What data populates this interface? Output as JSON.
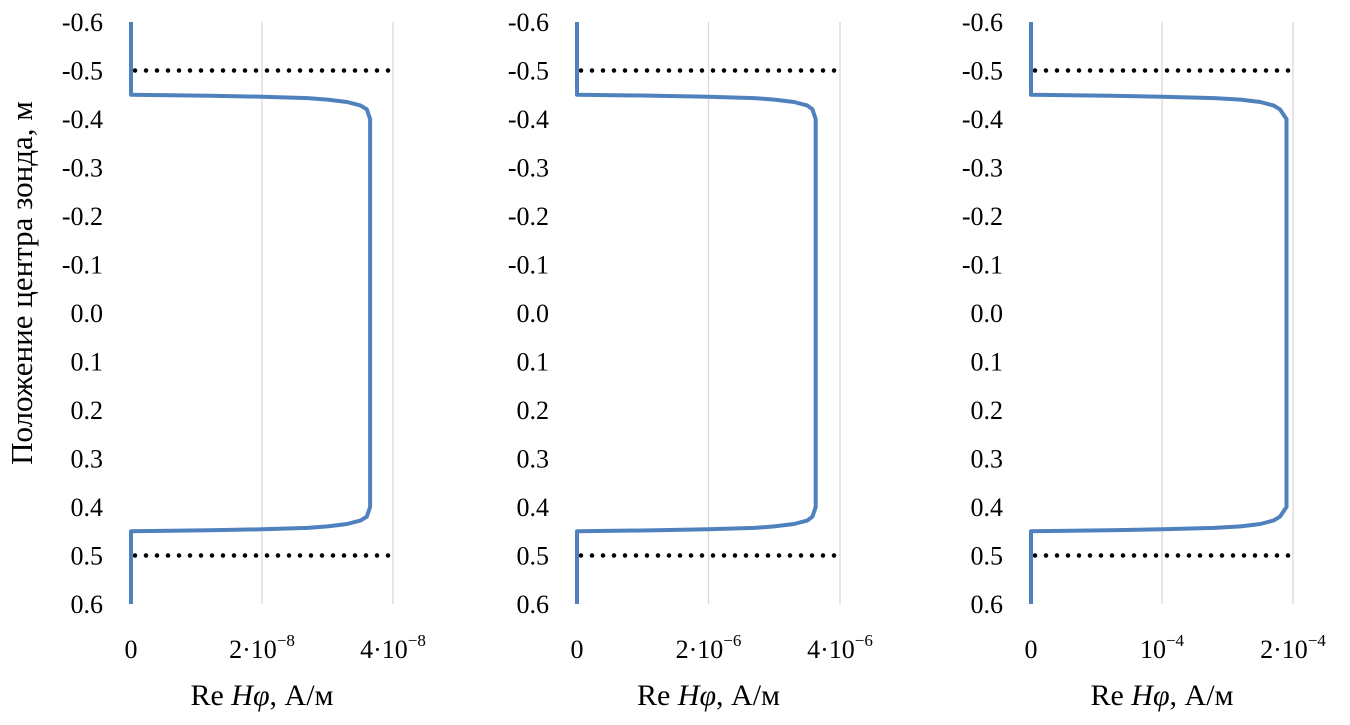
{
  "ylabel": "Положение центра зонда, м",
  "colors": {
    "curve": "#4f81bd",
    "grid": "#d9d9d9",
    "marker": "#000000"
  },
  "chart_data": [
    {
      "type": "line",
      "xlabel_prefix": "Re ",
      "xlabel_var": "Hφ",
      "xlabel_suffix": ", А/м",
      "xlim": [
        0,
        4e-08
      ],
      "ylim": [
        -0.6,
        0.6
      ],
      "y_reversed": true,
      "x_ticks": [
        {
          "value": 0,
          "label": "0"
        },
        {
          "value": 2e-08,
          "base": "2·10",
          "exp": "−8"
        },
        {
          "value": 4e-08,
          "base": "4·10",
          "exp": "−8"
        }
      ],
      "y_ticks": [
        "-0.6",
        "-0.5",
        "-0.4",
        "-0.3",
        "-0.2",
        "-0.1",
        "0.0",
        "0.1",
        "0.2",
        "0.3",
        "0.4",
        "0.5",
        "0.6"
      ],
      "reference_lines": [
        -0.5,
        0.5
      ],
      "series": [
        {
          "points": [
            [
              0,
              -0.6
            ],
            [
              0,
              -0.45
            ],
            [
              1.2e-08,
              -0.448
            ],
            [
              2e-08,
              -0.446
            ],
            [
              2.7e-08,
              -0.443
            ],
            [
              3e-08,
              -0.44
            ],
            [
              3.3e-08,
              -0.435
            ],
            [
              3.5e-08,
              -0.428
            ],
            [
              3.6e-08,
              -0.42
            ],
            [
              3.65e-08,
              -0.4
            ],
            [
              3.65e-08,
              0.4
            ],
            [
              3.6e-08,
              0.42
            ],
            [
              3.5e-08,
              0.428
            ],
            [
              3.3e-08,
              0.435
            ],
            [
              3e-08,
              0.44
            ],
            [
              2.7e-08,
              0.443
            ],
            [
              2e-08,
              0.446
            ],
            [
              1.2e-08,
              0.448
            ],
            [
              0,
              0.45
            ],
            [
              0,
              0.6
            ]
          ]
        }
      ]
    },
    {
      "type": "line",
      "xlabel_prefix": "Re ",
      "xlabel_var": "Hφ",
      "xlabel_suffix": ", А/м",
      "xlim": [
        0,
        4e-06
      ],
      "ylim": [
        -0.6,
        0.6
      ],
      "y_reversed": true,
      "x_ticks": [
        {
          "value": 0,
          "label": "0"
        },
        {
          "value": 2e-06,
          "base": "2·10",
          "exp": "−6"
        },
        {
          "value": 4e-06,
          "base": "4·10",
          "exp": "−6"
        }
      ],
      "y_ticks": [
        "-0.6",
        "-0.5",
        "-0.4",
        "-0.3",
        "-0.2",
        "-0.1",
        "0.0",
        "0.1",
        "0.2",
        "0.3",
        "0.4",
        "0.5",
        "0.6"
      ],
      "reference_lines": [
        -0.5,
        0.5
      ],
      "series": [
        {
          "points": [
            [
              0,
              -0.6
            ],
            [
              0,
              -0.45
            ],
            [
              1.2e-06,
              -0.448
            ],
            [
              2e-06,
              -0.446
            ],
            [
              2.7e-06,
              -0.443
            ],
            [
              3e-06,
              -0.44
            ],
            [
              3.3e-06,
              -0.435
            ],
            [
              3.5e-06,
              -0.428
            ],
            [
              3.58e-06,
              -0.42
            ],
            [
              3.63e-06,
              -0.4
            ],
            [
              3.63e-06,
              0.4
            ],
            [
              3.58e-06,
              0.42
            ],
            [
              3.5e-06,
              0.428
            ],
            [
              3.3e-06,
              0.435
            ],
            [
              3e-06,
              0.44
            ],
            [
              2.7e-06,
              0.443
            ],
            [
              2e-06,
              0.446
            ],
            [
              1.2e-06,
              0.448
            ],
            [
              0,
              0.45
            ],
            [
              0,
              0.6
            ]
          ]
        }
      ]
    },
    {
      "type": "line",
      "xlabel_prefix": "Re ",
      "xlabel_var": "Hφ",
      "xlabel_suffix": ", А/м",
      "xlim": [
        0,
        0.0002
      ],
      "ylim": [
        -0.6,
        0.6
      ],
      "y_reversed": true,
      "x_ticks": [
        {
          "value": 0,
          "label": "0"
        },
        {
          "value": 0.0001,
          "base": "10",
          "exp": "−4"
        },
        {
          "value": 0.0002,
          "base": "2·10",
          "exp": "−4"
        }
      ],
      "y_ticks": [
        "-0.6",
        "-0.5",
        "-0.4",
        "-0.3",
        "-0.2",
        "-0.1",
        "0.0",
        "0.1",
        "0.2",
        "0.3",
        "0.4",
        "0.5",
        "0.6"
      ],
      "reference_lines": [
        -0.5,
        0.5
      ],
      "series": [
        {
          "points": [
            [
              0,
              -0.6
            ],
            [
              0,
              -0.45
            ],
            [
              6e-05,
              -0.448
            ],
            [
              0.0001,
              -0.446
            ],
            [
              0.00014,
              -0.443
            ],
            [
              0.00016,
              -0.44
            ],
            [
              0.000175,
              -0.435
            ],
            [
              0.000185,
              -0.428
            ],
            [
              0.00019,
              -0.42
            ],
            [
              0.000195,
              -0.4
            ],
            [
              0.000195,
              0.4
            ],
            [
              0.00019,
              0.42
            ],
            [
              0.000185,
              0.428
            ],
            [
              0.000175,
              0.435
            ],
            [
              0.00016,
              0.44
            ],
            [
              0.00014,
              0.443
            ],
            [
              0.0001,
              0.446
            ],
            [
              6e-05,
              0.448
            ],
            [
              0,
              0.45
            ],
            [
              0,
              0.6
            ]
          ]
        }
      ]
    }
  ]
}
